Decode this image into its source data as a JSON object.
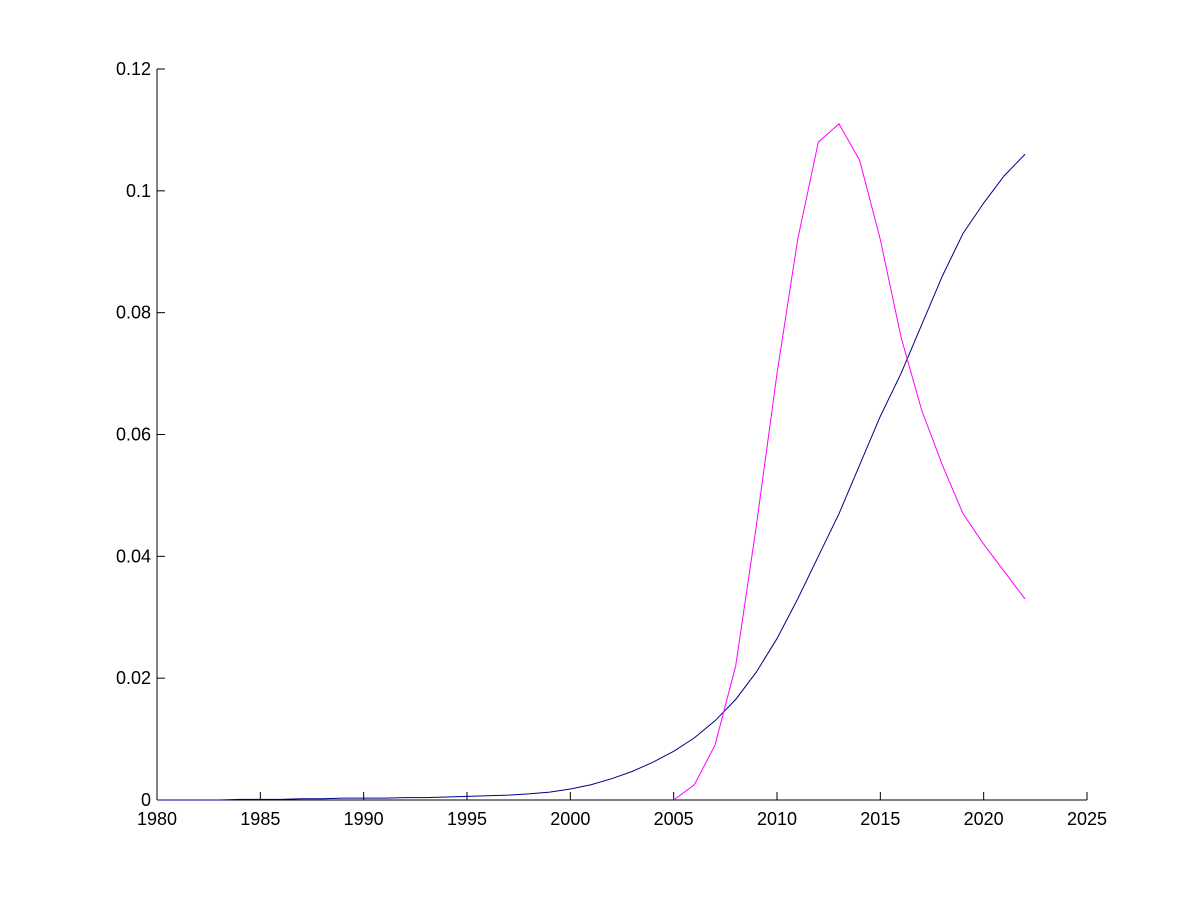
{
  "chart_data": {
    "type": "line",
    "x": [
      1980,
      1981,
      1982,
      1983,
      1984,
      1985,
      1986,
      1987,
      1988,
      1989,
      1990,
      1991,
      1992,
      1993,
      1994,
      1995,
      1996,
      1997,
      1998,
      1999,
      2000,
      2001,
      2002,
      2003,
      2004,
      2005,
      2006,
      2007,
      2008,
      2009,
      2010,
      2011,
      2012,
      2013,
      2014,
      2015,
      2016,
      2017,
      2018,
      2019,
      2020,
      2021,
      2022
    ],
    "series": [
      {
        "color": "#00008b",
        "values": [
          0,
          0,
          0,
          0,
          0.0001,
          0.0001,
          0.0001,
          0.0002,
          0.0002,
          0.0003,
          0.0003,
          0.0003,
          0.0004,
          0.0004,
          0.0005,
          0.0006,
          0.0007,
          0.0008,
          0.001,
          0.0013,
          0.0018,
          0.0025,
          0.0035,
          0.0047,
          0.0062,
          0.008,
          0.0102,
          0.013,
          0.0165,
          0.021,
          0.0265,
          0.033,
          0.04,
          0.047,
          0.055,
          0.063,
          0.07,
          0.078,
          0.086,
          0.093,
          0.098,
          0.1025,
          0.106
        ]
      },
      {
        "color": "#ff00ff",
        "values": [
          null,
          null,
          null,
          null,
          null,
          null,
          null,
          null,
          null,
          null,
          null,
          null,
          null,
          null,
          null,
          null,
          null,
          null,
          null,
          null,
          null,
          null,
          null,
          null,
          null,
          0,
          0.0025,
          0.009,
          0.022,
          0.045,
          0.07,
          0.092,
          0.108,
          0.111,
          0.105,
          0.092,
          0.076,
          0.064,
          0.055,
          0.047,
          0.042,
          0.0375,
          0.033
        ]
      }
    ],
    "xlim": [
      1980,
      2025
    ],
    "xticks": [
      1980,
      1985,
      1990,
      1995,
      2000,
      2005,
      2010,
      2015,
      2020,
      2025
    ],
    "ylim": [
      0,
      0.12
    ],
    "yticks": [
      0,
      0.02,
      0.04,
      0.06,
      0.08,
      0.1,
      0.12
    ]
  }
}
